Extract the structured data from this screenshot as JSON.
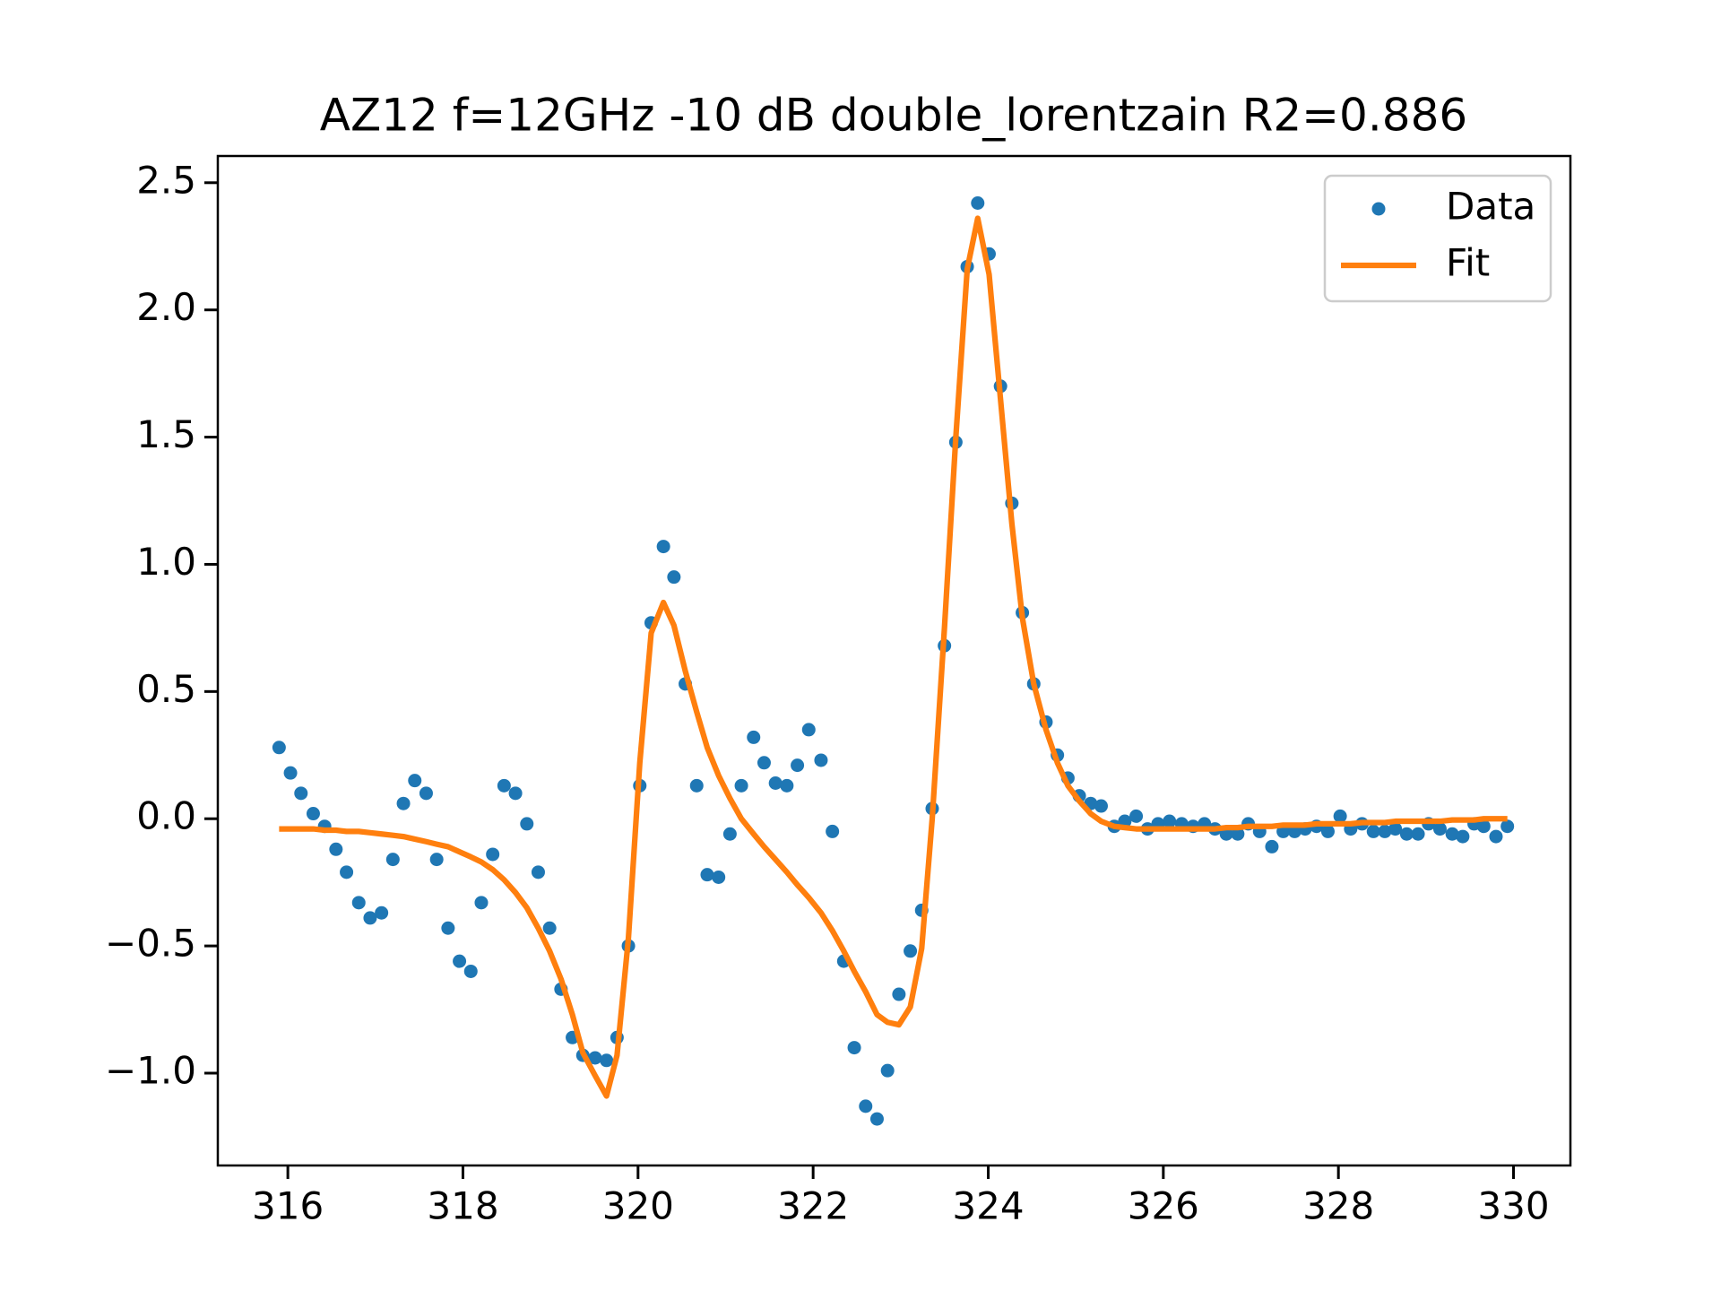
{
  "chart_data": {
    "type": "line",
    "title": "AZ12 f=12GHz -10 dB double_lorentzain R2=0.886",
    "x": [
      315.9,
      316.03,
      316.15,
      316.29,
      316.42,
      316.55,
      316.67,
      316.81,
      316.94,
      317.07,
      317.2,
      317.32,
      317.45,
      317.58,
      317.7,
      317.83,
      317.96,
      318.09,
      318.21,
      318.34,
      318.47,
      318.6,
      318.73,
      318.86,
      318.99,
      319.12,
      319.25,
      319.37,
      319.51,
      319.64,
      319.76,
      319.89,
      320.02,
      320.15,
      320.29,
      320.41,
      320.54,
      320.67,
      320.79,
      320.92,
      321.05,
      321.18,
      321.32,
      321.44,
      321.57,
      321.7,
      321.82,
      321.95,
      322.09,
      322.22,
      322.35,
      322.47,
      322.6,
      322.73,
      322.85,
      322.98,
      323.11,
      323.24,
      323.36,
      323.5,
      323.63,
      323.76,
      323.88,
      324.01,
      324.14,
      324.27,
      324.39,
      324.52,
      324.66,
      324.79,
      324.91,
      325.04,
      325.17,
      325.29,
      325.44,
      325.56,
      325.69,
      325.82,
      325.94,
      326.07,
      326.21,
      326.34,
      326.47,
      326.59,
      326.72,
      326.85,
      326.97,
      327.1,
      327.24,
      327.37,
      327.5,
      327.62,
      327.75,
      327.88,
      328.02,
      328.14,
      328.27,
      328.4,
      328.53,
      328.65,
      328.78,
      328.91,
      329.03,
      329.16,
      329.3,
      329.42,
      329.55,
      329.66,
      329.8,
      329.93
    ],
    "series": [
      {
        "name": "Data",
        "color": "#1f77b4",
        "style": "markers",
        "values": [
          0.28,
          0.18,
          0.1,
          0.02,
          -0.03,
          -0.12,
          -0.21,
          -0.33,
          -0.39,
          -0.37,
          -0.16,
          0.06,
          0.15,
          0.1,
          -0.16,
          -0.43,
          -0.56,
          -0.6,
          -0.33,
          -0.14,
          0.13,
          0.1,
          -0.02,
          -0.21,
          -0.43,
          -0.67,
          -0.86,
          -0.93,
          -0.94,
          -0.95,
          -0.86,
          -0.5,
          0.13,
          0.77,
          1.07,
          0.95,
          0.53,
          0.13,
          -0.22,
          -0.23,
          -0.06,
          0.13,
          0.32,
          0.22,
          0.14,
          0.13,
          0.21,
          0.35,
          0.23,
          -0.05,
          -0.56,
          -0.9,
          -1.13,
          -1.18,
          -0.99,
          -0.69,
          -0.52,
          -0.36,
          0.04,
          0.68,
          1.48,
          2.17,
          2.42,
          2.22,
          1.7,
          1.24,
          0.81,
          0.53,
          0.38,
          0.25,
          0.16,
          0.09,
          0.06,
          0.05,
          -0.03,
          -0.01,
          0.01,
          -0.04,
          -0.02,
          -0.01,
          -0.02,
          -0.03,
          -0.02,
          -0.04,
          -0.06,
          -0.06,
          -0.02,
          -0.05,
          -0.11,
          -0.05,
          -0.05,
          -0.04,
          -0.03,
          -0.05,
          0.01,
          -0.04,
          -0.02,
          -0.05,
          -0.05,
          -0.04,
          -0.06,
          -0.06,
          -0.02,
          -0.04,
          -0.06,
          -0.07,
          -0.02,
          -0.03,
          -0.07,
          -0.03
        ]
      },
      {
        "name": "Fit",
        "color": "#ff7f0e",
        "style": "line",
        "values": [
          -0.04,
          -0.04,
          -0.04,
          -0.04,
          -0.045,
          -0.045,
          -0.05,
          -0.05,
          -0.055,
          -0.06,
          -0.065,
          -0.07,
          -0.08,
          -0.09,
          -0.1,
          -0.11,
          -0.13,
          -0.15,
          -0.17,
          -0.2,
          -0.24,
          -0.29,
          -0.35,
          -0.43,
          -0.52,
          -0.63,
          -0.77,
          -0.92,
          -1.01,
          -1.09,
          -0.93,
          -0.47,
          0.22,
          0.73,
          0.85,
          0.76,
          0.58,
          0.42,
          0.28,
          0.17,
          0.08,
          0.0,
          -0.06,
          -0.11,
          -0.16,
          -0.21,
          -0.26,
          -0.31,
          -0.37,
          -0.44,
          -0.52,
          -0.6,
          -0.68,
          -0.77,
          -0.8,
          -0.81,
          -0.74,
          -0.51,
          0.0,
          0.75,
          1.5,
          2.16,
          2.36,
          2.14,
          1.65,
          1.16,
          0.79,
          0.53,
          0.35,
          0.22,
          0.13,
          0.07,
          0.02,
          -0.01,
          -0.03,
          -0.035,
          -0.04,
          -0.04,
          -0.04,
          -0.04,
          -0.04,
          -0.04,
          -0.04,
          -0.04,
          -0.035,
          -0.035,
          -0.03,
          -0.03,
          -0.03,
          -0.025,
          -0.025,
          -0.025,
          -0.02,
          -0.02,
          -0.02,
          -0.02,
          -0.015,
          -0.015,
          -0.015,
          -0.01,
          -0.01,
          -0.01,
          -0.01,
          -0.01,
          -0.005,
          -0.005,
          -0.005,
          0,
          0,
          0
        ]
      }
    ],
    "xlim": [
      315.2,
      330.65
    ],
    "ylim": [
      -1.363,
      2.605
    ],
    "xticks": [
      316,
      318,
      320,
      322,
      324,
      326,
      328,
      330
    ],
    "yticks": [
      {
        "value": -1.0,
        "label": "−1.0"
      },
      {
        "value": -0.5,
        "label": "−0.5"
      },
      {
        "value": 0.0,
        "label": "0.0"
      },
      0.5,
      {
        "value": 1.0,
        "label": "1.0"
      },
      1.5,
      {
        "value": 2.0,
        "label": "2.0"
      },
      2.5
    ],
    "legend": "upper right",
    "grid": false
  }
}
